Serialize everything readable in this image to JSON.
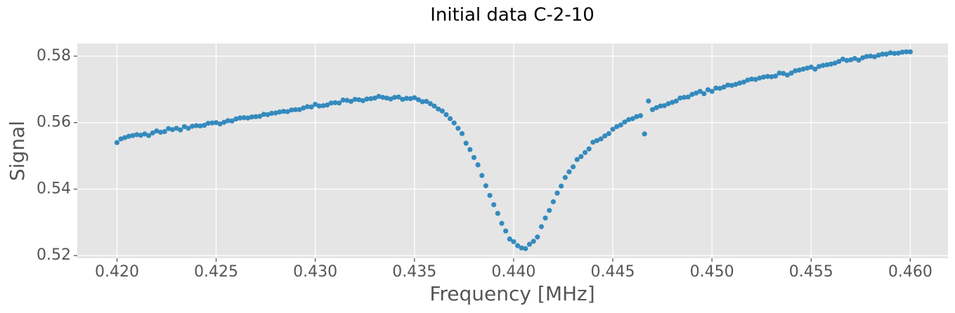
{
  "chart_data": {
    "type": "scatter",
    "title": "Initial data C-2-10",
    "xlabel": "Frequency [MHz]",
    "ylabel": "Signal",
    "color": "#348abd",
    "grid": true,
    "xlim": [
      0.418,
      0.4619
    ],
    "ylim": [
      0.5192,
      0.5838
    ],
    "xticks": [
      {
        "value": 0.42,
        "label": "0.420"
      },
      0.425,
      {
        "value": 0.43,
        "label": "0.430"
      },
      0.435,
      {
        "value": 0.44,
        "label": "0.440"
      },
      0.445,
      {
        "value": 0.45,
        "label": "0.450"
      },
      0.455,
      {
        "value": 0.46,
        "label": "0.460"
      }
    ],
    "yticks": [
      0.52,
      0.54,
      0.56,
      0.58
    ],
    "x": [
      0.42,
      0.4202,
      0.4204,
      0.4206,
      0.4208,
      0.421,
      0.4212,
      0.4214,
      0.4216,
      0.4218,
      0.422,
      0.4222,
      0.4224,
      0.4226,
      0.4228,
      0.423,
      0.4232,
      0.4234,
      0.4236,
      0.4238,
      0.424,
      0.4242,
      0.4244,
      0.4246,
      0.4248,
      0.425,
      0.4252,
      0.4254,
      0.4256,
      0.4258,
      0.426,
      0.4262,
      0.4264,
      0.4266,
      0.4268,
      0.427,
      0.4272,
      0.4274,
      0.4276,
      0.4278,
      0.428,
      0.4282,
      0.4284,
      0.4286,
      0.4288,
      0.429,
      0.4292,
      0.4294,
      0.4296,
      0.4298,
      0.43,
      0.4302,
      0.4304,
      0.4306,
      0.4308,
      0.431,
      0.4312,
      0.4314,
      0.4316,
      0.4318,
      0.432,
      0.4322,
      0.4324,
      0.4326,
      0.4328,
      0.433,
      0.4332,
      0.4334,
      0.4336,
      0.4338,
      0.434,
      0.4342,
      0.4344,
      0.4346,
      0.4348,
      0.435,
      0.4352,
      0.4354,
      0.4356,
      0.4358,
      0.436,
      0.4362,
      0.4364,
      0.4366,
      0.4368,
      0.437,
      0.4372,
      0.4374,
      0.4376,
      0.4378,
      0.438,
      0.4382,
      0.4384,
      0.4386,
      0.4388,
      0.439,
      0.4392,
      0.4394,
      0.4396,
      0.4398,
      0.44,
      0.4402,
      0.4404,
      0.4406,
      0.4408,
      0.441,
      0.4412,
      0.4414,
      0.4416,
      0.4418,
      0.442,
      0.4422,
      0.4424,
      0.4426,
      0.4428,
      0.443,
      0.4432,
      0.4434,
      0.4436,
      0.4438,
      0.444,
      0.4442,
      0.4444,
      0.4446,
      0.4448,
      0.445,
      0.4452,
      0.4454,
      0.4456,
      0.4458,
      0.446,
      0.4462,
      0.4464,
      0.4466,
      0.4468,
      0.447,
      0.4472,
      0.4474,
      0.4476,
      0.4478,
      0.448,
      0.4482,
      0.4484,
      0.4486,
      0.4488,
      0.449,
      0.4492,
      0.4494,
      0.4496,
      0.4498,
      0.45,
      0.4502,
      0.4504,
      0.4506,
      0.4508,
      0.451,
      0.4512,
      0.4514,
      0.4516,
      0.4518,
      0.452,
      0.4522,
      0.4524,
      0.4526,
      0.4528,
      0.453,
      0.4532,
      0.4534,
      0.4536,
      0.4538,
      0.454,
      0.4542,
      0.4544,
      0.4546,
      0.4548,
      0.455,
      0.4552,
      0.4554,
      0.4556,
      0.4558,
      0.456,
      0.4562,
      0.4564,
      0.4566,
      0.4568,
      0.457,
      0.4572,
      0.4574,
      0.4576,
      0.4578,
      0.458,
      0.4582,
      0.4584,
      0.4586,
      0.4588,
      0.459,
      0.4592,
      0.4594,
      0.4596,
      0.4598,
      0.46
    ],
    "values": [
      0.554,
      0.5551,
      0.5555,
      0.5559,
      0.5561,
      0.5564,
      0.5562,
      0.5566,
      0.5561,
      0.5569,
      0.5575,
      0.5571,
      0.5573,
      0.5582,
      0.5579,
      0.5583,
      0.5578,
      0.5588,
      0.5583,
      0.5589,
      0.5591,
      0.559,
      0.5592,
      0.5598,
      0.5599,
      0.56,
      0.5596,
      0.5601,
      0.5606,
      0.5605,
      0.5611,
      0.5614,
      0.5615,
      0.5614,
      0.5617,
      0.5618,
      0.5619,
      0.5625,
      0.5624,
      0.5628,
      0.5629,
      0.5632,
      0.5634,
      0.5633,
      0.5638,
      0.5639,
      0.5639,
      0.5644,
      0.5648,
      0.5647,
      0.5655,
      0.565,
      0.5651,
      0.5653,
      0.5659,
      0.566,
      0.5659,
      0.5668,
      0.5667,
      0.5664,
      0.567,
      0.5669,
      0.5666,
      0.5671,
      0.5672,
      0.5674,
      0.5679,
      0.5676,
      0.5674,
      0.5671,
      0.5676,
      0.5677,
      0.567,
      0.5673,
      0.5672,
      0.5675,
      0.5669,
      0.5663,
      0.5664,
      0.5657,
      0.565,
      0.5641,
      0.5635,
      0.5624,
      0.5612,
      0.5599,
      0.5583,
      0.5567,
      0.5538,
      0.5519,
      0.5495,
      0.5473,
      0.5441,
      0.541,
      0.5381,
      0.5353,
      0.5327,
      0.5297,
      0.5274,
      0.525,
      0.5242,
      0.523,
      0.5223,
      0.5221,
      0.5234,
      0.5243,
      0.5256,
      0.5287,
      0.5313,
      0.5336,
      0.5362,
      0.5388,
      0.5409,
      0.5435,
      0.5452,
      0.5467,
      0.5489,
      0.5498,
      0.551,
      0.5521,
      0.5541,
      0.5546,
      0.5551,
      0.556,
      0.5567,
      0.558,
      0.5588,
      0.5593,
      0.5602,
      0.5609,
      0.5612,
      0.5618,
      0.5621,
      0.5566,
      0.5665,
      0.5639,
      0.5645,
      0.565,
      0.5651,
      0.5657,
      0.5661,
      0.5665,
      0.5674,
      0.5676,
      0.5677,
      0.5685,
      0.5689,
      0.5694,
      0.5687,
      0.5699,
      0.5694,
      0.5704,
      0.5703,
      0.5707,
      0.5713,
      0.5712,
      0.5715,
      0.5719,
      0.5722,
      0.5728,
      0.5731,
      0.573,
      0.5734,
      0.5737,
      0.5739,
      0.5738,
      0.574,
      0.5749,
      0.5748,
      0.5743,
      0.5749,
      0.5756,
      0.5758,
      0.5761,
      0.5764,
      0.5767,
      0.5761,
      0.5769,
      0.5772,
      0.5774,
      0.5776,
      0.5779,
      0.5784,
      0.5791,
      0.5787,
      0.5789,
      0.5793,
      0.5788,
      0.5795,
      0.5799,
      0.58,
      0.5798,
      0.5803,
      0.5806,
      0.5806,
      0.581,
      0.5808,
      0.5809,
      0.5812,
      0.5813,
      0.5813
    ]
  }
}
